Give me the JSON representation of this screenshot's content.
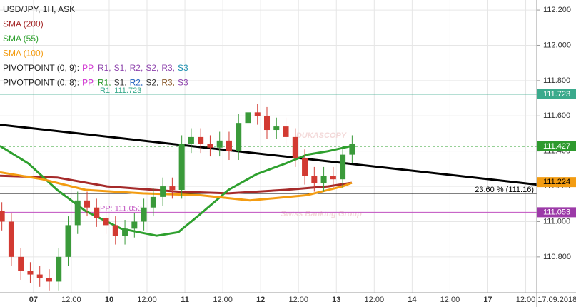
{
  "chart_data": {
    "type": "candlestick",
    "title": "USD/JPY, 1H, ASK",
    "x": [
      -10,
      -7,
      -4,
      -1,
      2,
      5,
      8,
      11,
      14,
      17,
      20,
      23,
      26,
      29,
      32,
      35,
      38,
      41,
      44,
      47,
      50,
      53,
      56,
      59,
      62,
      65,
      68,
      71,
      74,
      77,
      80,
      83,
      86,
      89,
      92,
      95,
      98,
      101
    ],
    "open": [
      111.06,
      111.0,
      110.8,
      110.72,
      110.7,
      110.68,
      110.66,
      110.8,
      110.98,
      111.12,
      111.08,
      111.02,
      110.98,
      110.92,
      110.96,
      111.0,
      111.08,
      111.14,
      111.2,
      111.18,
      111.44,
      111.48,
      111.44,
      111.42,
      111.46,
      111.4,
      111.56,
      111.62,
      111.6,
      111.52,
      111.54,
      111.48,
      111.36,
      111.26,
      111.22,
      111.26,
      111.24,
      111.38
    ],
    "high": [
      111.11,
      111.05,
      110.85,
      110.77,
      110.75,
      110.73,
      110.85,
      111.03,
      111.17,
      111.17,
      111.13,
      111.07,
      111.03,
      111.01,
      111.05,
      111.13,
      111.19,
      111.25,
      111.25,
      111.49,
      111.53,
      111.53,
      111.49,
      111.51,
      111.51,
      111.61,
      111.67,
      111.67,
      111.65,
      111.59,
      111.59,
      111.53,
      111.41,
      111.31,
      111.31,
      111.31,
      111.43,
      111.49
    ],
    "low": [
      110.95,
      110.75,
      110.67,
      110.65,
      110.63,
      110.61,
      110.61,
      110.75,
      110.93,
      111.03,
      110.97,
      110.93,
      110.87,
      110.87,
      110.91,
      110.95,
      111.03,
      111.09,
      111.13,
      111.13,
      111.39,
      111.39,
      111.37,
      111.37,
      111.35,
      111.35,
      111.51,
      111.55,
      111.47,
      111.47,
      111.43,
      111.31,
      111.21,
      111.17,
      111.17,
      111.19,
      111.19,
      111.33
    ],
    "close": [
      111.0,
      110.8,
      110.72,
      110.7,
      110.68,
      110.66,
      110.8,
      110.98,
      111.12,
      111.08,
      111.02,
      110.98,
      110.92,
      110.96,
      111.0,
      111.08,
      111.14,
      111.2,
      111.18,
      111.44,
      111.48,
      111.44,
      111.42,
      111.46,
      111.4,
      111.56,
      111.62,
      111.6,
      111.52,
      111.54,
      111.48,
      111.36,
      111.26,
      111.22,
      111.26,
      111.24,
      111.38,
      111.44
    ],
    "up_color": "#3a9a3a",
    "down_color": "#d23a32",
    "xlim": [
      -10.6,
      159.5
    ],
    "ylim": [
      110.597,
      112.257
    ],
    "xticks": [
      {
        "value": 0,
        "label": "07"
      },
      {
        "value": 12,
        "label": "12:00"
      },
      {
        "value": 24,
        "label": "10"
      },
      {
        "value": 36,
        "label": "12:00"
      },
      {
        "value": 48,
        "label": "11"
      },
      {
        "value": 60,
        "label": "12:00"
      },
      {
        "value": 72,
        "label": "12"
      },
      {
        "value": 84,
        "label": "12:00"
      },
      {
        "value": 96,
        "label": "13"
      },
      {
        "value": 108,
        "label": "12:00"
      },
      {
        "value": 120,
        "label": "14"
      },
      {
        "value": 132,
        "label": "12:00"
      },
      {
        "value": 144,
        "label": "17"
      },
      {
        "value": 156,
        "label": "12:00"
      },
      {
        "value": 166,
        "label": "17.09.2018"
      }
    ],
    "yticks": [
      {
        "value": 110.8,
        "label": "110.800"
      },
      {
        "value": 111.0,
        "label": "111.000"
      },
      {
        "value": 111.2,
        "label": "111.200"
      },
      {
        "value": 111.4,
        "label": "111.400"
      },
      {
        "value": 111.6,
        "label": "111.600"
      },
      {
        "value": 111.8,
        "label": "111.800"
      },
      {
        "value": 112.0,
        "label": "112.000"
      },
      {
        "value": 112.2,
        "label": "112.200"
      }
    ],
    "grid": true,
    "indicators": [
      {
        "name": "SMA (200)",
        "color": "#a52a2a",
        "x": [
          -10.6,
          7.5,
          23.3,
          45.9,
          61.8,
          79.9,
          93.4,
          100.9
        ],
        "values": [
          111.26,
          111.25,
          111.2,
          111.17,
          111.16,
          111.18,
          111.2,
          111.22
        ]
      },
      {
        "name": "SMA (55)",
        "color": "#2ea02e",
        "x": [
          -10.6,
          -1.6,
          7.5,
          16.5,
          27.8,
          39.1,
          45.9,
          52.7,
          61.8,
          70.8,
          79.9,
          86.7,
          93.4,
          100.9
        ],
        "values": [
          111.43,
          111.33,
          111.18,
          111.06,
          110.96,
          110.92,
          110.94,
          111.04,
          111.18,
          111.27,
          111.33,
          111.38,
          111.4,
          111.43
        ]
      },
      {
        "name": "SMA (100)",
        "color": "#f39c12",
        "x": [
          -10.6,
          2.9,
          16.5,
          34.6,
          52.7,
          68.6,
          86.7,
          98,
          100.9
        ],
        "values": [
          111.28,
          111.24,
          111.18,
          111.16,
          111.15,
          111.12,
          111.15,
          111.2,
          111.22
        ]
      }
    ],
    "trendline": {
      "color": "#000000",
      "x": [
        -10.6,
        159.5
      ],
      "values": [
        111.55,
        111.21
      ]
    },
    "levels": [
      {
        "value": 111.723,
        "color": "#3aaa8c",
        "label": "R1: 111.723",
        "dashed": false
      },
      {
        "value": 111.427,
        "color": "#2ea02e",
        "dashed": true
      },
      {
        "value": 111.16,
        "color": "#000000",
        "label": "23.60 % (111.16)",
        "dashed": false
      },
      {
        "value": 111.053,
        "color": "#c050c0",
        "label": "PP: 111.053",
        "dashed": false
      },
      {
        "value": 111.02,
        "color": "#b03090",
        "dashed": false
      }
    ],
    "price_badges": [
      {
        "value": 111.723,
        "color": "#3aaa8c",
        "text_color": "#ffffff"
      },
      {
        "value": 111.427,
        "color": "#2e9a2e",
        "text_color": "#ffffff"
      },
      {
        "value": 111.224,
        "color": "#f39c12",
        "text_color": "#000000"
      },
      {
        "value": 111.053,
        "color": "#9c3aa8",
        "text_color": "#ffffff"
      }
    ],
    "legend_pivots": [
      {
        "label": "PIVOTPOINT (0, 9):",
        "items": [
          {
            "name": "PP,",
            "color": "#d030d0"
          },
          {
            "name": "R1,",
            "color": "#8e44ad"
          },
          {
            "name": "S1,",
            "color": "#8e44ad"
          },
          {
            "name": "R2,",
            "color": "#8e44ad"
          },
          {
            "name": "S2,",
            "color": "#8e44ad"
          },
          {
            "name": "R3,",
            "color": "#8e44ad"
          },
          {
            "name": "S3",
            "color": "#1e90b0"
          }
        ]
      },
      {
        "label": "PIVOTPOINT (0, 8):",
        "items": [
          {
            "name": "PP,",
            "color": "#d030d0"
          },
          {
            "name": "R1,",
            "color": "#2e9a2e"
          },
          {
            "name": "S1,",
            "color": "#333333"
          },
          {
            "name": "R2,",
            "color": "#1f5fbf"
          },
          {
            "name": "S2,",
            "color": "#333333"
          },
          {
            "name": "R3,",
            "color": "#8b5a2b"
          },
          {
            "name": "S3",
            "color": "#8e44ad"
          }
        ]
      }
    ],
    "watermark": [
      "DUKASCOPY",
      "Swiss Banking Group"
    ]
  }
}
